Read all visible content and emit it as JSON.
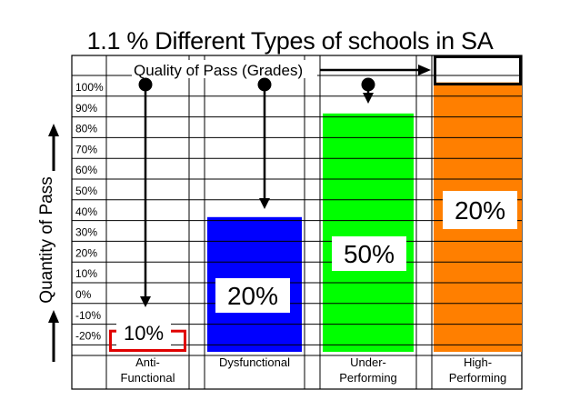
{
  "chart_data": {
    "type": "bar",
    "title": "1.1 % Different Types of schools in SA",
    "ylabel": "Quantity of Pass",
    "top_label": "Quality of Pass (Grades)",
    "y_ticks": [
      "100%",
      "90%",
      "80%",
      "70%",
      "60%",
      "50%",
      "40%",
      "30%",
      "20%",
      "10%",
      "0%",
      "-10%",
      "-20%"
    ],
    "ylim": [
      -20,
      110
    ],
    "categories": [
      "Anti-\nFunctional",
      "Dysfunctional",
      "Under-\nPerforming",
      "High-\nPerforming"
    ],
    "bars": [
      {
        "top": -10,
        "label": "10%",
        "fill": "#ffffff",
        "border": "#e00000"
      },
      {
        "top": 45,
        "label": "20%",
        "fill": "#0000ff",
        "border": "#0000ff"
      },
      {
        "top": 95,
        "label": "50%",
        "fill": "#00ff00",
        "border": "#00ff00"
      },
      {
        "top": 110,
        "label": "20%",
        "fill": "#ff7f00",
        "border": "#000000"
      }
    ],
    "pointer_targets": [
      -10,
      45,
      95,
      110
    ],
    "grid": true,
    "colors": {
      "blue": "#0000ff",
      "green": "#00ff00",
      "orange": "#ff7f00",
      "red": "#e00000"
    }
  }
}
